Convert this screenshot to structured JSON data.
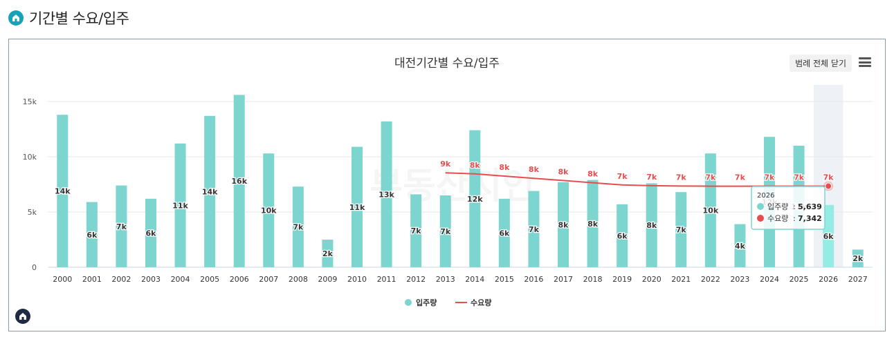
{
  "header": {
    "title": "기간별 수요/입주",
    "icon": "home-icon"
  },
  "controls": {
    "legend_toggle_label": "범례 전체 닫기",
    "menu_icon": "hamburger-icon"
  },
  "watermark": "부동산지인",
  "colors": {
    "bar": "#7dd5cf",
    "bar_highlight": "#95ece5",
    "line": "#e84c4f",
    "label_line": "#e84c4f",
    "highlight_band": "#eef1f6"
  },
  "tooltip": {
    "year": "2026",
    "rows": [
      {
        "name": "입주량",
        "value": "5,639"
      },
      {
        "name": "수요량",
        "value": "7,342"
      }
    ]
  },
  "chart_data": {
    "type": "bar",
    "title": "대전기간별 수요/입주",
    "categories": [
      "2000",
      "2001",
      "2002",
      "2003",
      "2004",
      "2005",
      "2006",
      "2007",
      "2008",
      "2009",
      "2010",
      "2011",
      "2012",
      "2013",
      "2014",
      "2015",
      "2016",
      "2017",
      "2018",
      "2019",
      "2020",
      "2021",
      "2022",
      "2023",
      "2024",
      "2025",
      "2026",
      "2027"
    ],
    "y_ticks": [
      "0",
      "5k",
      "10k",
      "15k"
    ],
    "ylim": [
      0,
      15000
    ],
    "grid": true,
    "legend_position": "bottom",
    "highlight_category": "2026",
    "series": [
      {
        "name": "입주량",
        "type": "bar",
        "values": [
          13800,
          5900,
          7400,
          6200,
          11200,
          13700,
          15600,
          10300,
          7300,
          2500,
          10900,
          13200,
          6600,
          6500,
          12400,
          6200,
          6900,
          7700,
          7900,
          5700,
          7600,
          6800,
          10300,
          3900,
          11800,
          11000,
          5639,
          1600
        ],
        "labels": [
          "14k",
          "6k",
          "7k",
          "6k",
          "11k",
          "14k",
          "16k",
          "10k",
          "7k",
          "2k",
          "11k",
          "13k",
          "7k",
          "7k",
          "12k",
          "6k",
          "7k",
          "8k",
          "8k",
          "6k",
          "8k",
          "7k",
          "10k",
          "4k",
          "12k",
          "11k",
          "6k",
          "2k"
        ]
      },
      {
        "name": "수요량",
        "type": "line",
        "start_category": "2013",
        "values": [
          null,
          null,
          null,
          null,
          null,
          null,
          null,
          null,
          null,
          null,
          null,
          null,
          null,
          8550,
          8450,
          8250,
          8050,
          7850,
          7650,
          7450,
          7380,
          7350,
          7340,
          7340,
          7342,
          7342,
          7342,
          null
        ],
        "labels": [
          "",
          "",
          "",
          "",
          "",
          "",
          "",
          "",
          "",
          "",
          "",
          "",
          "",
          "9k",
          "8k",
          "8k",
          "8k",
          "8k",
          "8k",
          "7k",
          "7k",
          "7k",
          "7k",
          "7k",
          "7k",
          "7k",
          "7k",
          ""
        ]
      }
    ]
  }
}
